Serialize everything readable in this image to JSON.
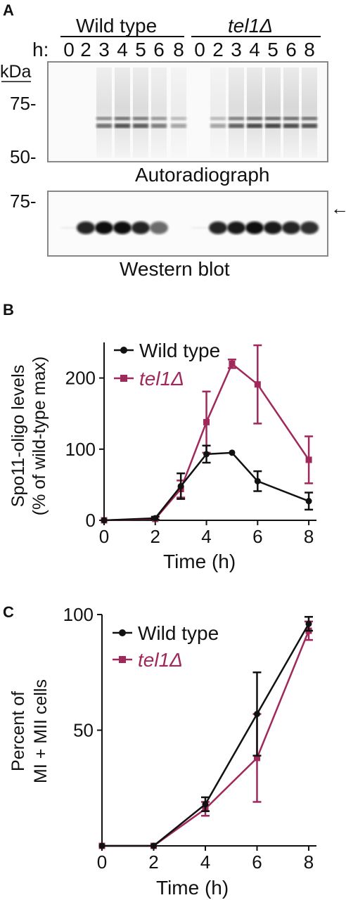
{
  "colors": {
    "wildtype": "#111111",
    "tel1": "#a0285a"
  },
  "panel_a": {
    "label": "A",
    "group_wt": "Wild type",
    "group_tel1": "tel1Δ",
    "hours_prefix": "h:",
    "hours": [
      "0",
      "2",
      "3",
      "4",
      "5",
      "6",
      "8"
    ],
    "kda_label": "kDa",
    "markers_autorad": [
      "75-",
      "50-"
    ],
    "caption_autorad": "Autoradiograph",
    "marker_western": "75-",
    "caption_western": "Western blot",
    "arrow": "←"
  },
  "chart_data": [
    {
      "panel": "B",
      "type": "line",
      "xlabel": "Time (h)",
      "ylabel_line1": "Spo11-oligo levels",
      "ylabel_line2": "(% of wild-type max)",
      "x": [
        0,
        2,
        3,
        4,
        5,
        6,
        8
      ],
      "xticks": [
        "0",
        "2",
        "4",
        "6",
        "8"
      ],
      "yticks": [
        "0",
        "100",
        "200"
      ],
      "xlim": [
        0,
        8.3
      ],
      "ylim": [
        0,
        250
      ],
      "series": [
        {
          "name": "Wild type",
          "marker": "circle",
          "values": [
            0,
            3,
            48,
            93,
            95,
            55,
            27
          ],
          "err": [
            0,
            2,
            18,
            12,
            0,
            14,
            12
          ]
        },
        {
          "name": "tel1Δ",
          "marker": "square",
          "values": [
            0,
            2,
            44,
            138,
            220,
            191,
            85
          ],
          "err": [
            0,
            0,
            12,
            43,
            6,
            55,
            33
          ]
        }
      ],
      "legend": "top-center"
    },
    {
      "panel": "C",
      "type": "line",
      "xlabel": "Time (h)",
      "ylabel_line1": "Percent of",
      "ylabel_line2": "MI + MII cells",
      "x": [
        0,
        2,
        4,
        6,
        8
      ],
      "xticks": [
        "0",
        "2",
        "4",
        "6",
        "8"
      ],
      "yticks": [
        "50",
        "100"
      ],
      "xlim": [
        0,
        8.3
      ],
      "ylim": [
        0,
        100
      ],
      "series": [
        {
          "name": "Wild type",
          "marker": "circle",
          "values": [
            0,
            0,
            18,
            57,
            96
          ],
          "err": [
            0,
            0,
            3,
            18,
            3
          ]
        },
        {
          "name": "tel1Δ",
          "marker": "square",
          "values": [
            0,
            0,
            16,
            38,
            93
          ],
          "err": [
            0,
            0,
            3,
            19,
            4
          ]
        }
      ],
      "legend": "top-left"
    }
  ]
}
